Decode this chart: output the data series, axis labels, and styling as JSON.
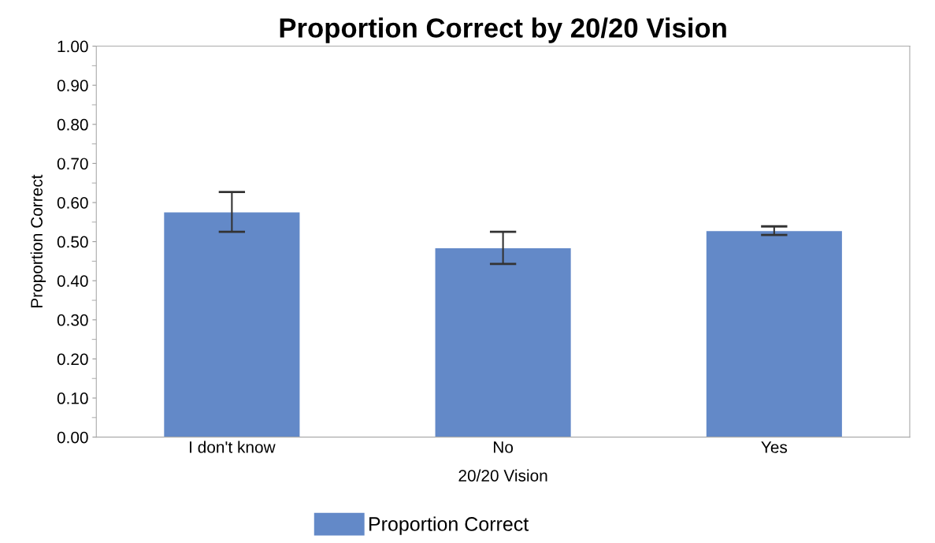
{
  "chart_data": {
    "type": "bar",
    "title": "Proportion Correct by 20/20 Vision",
    "xlabel": "20/20 Vision",
    "ylabel": "Proportion Correct",
    "categories": [
      "I don't know",
      "No",
      "Yes"
    ],
    "series": [
      {
        "name": "Proportion Correct",
        "color": "#6389c8",
        "values": [
          0.575,
          0.483,
          0.527
        ],
        "errors": [
          [
            0.525,
            0.627
          ],
          [
            0.443,
            0.525
          ],
          [
            0.517,
            0.539
          ]
        ]
      }
    ],
    "ylim": [
      0,
      1
    ],
    "yticks": [
      {
        "value": 0,
        "label": "0.00"
      },
      {
        "value": 0.1,
        "label": "0.10"
      },
      {
        "value": 0.2,
        "label": "0.20"
      },
      {
        "value": 0.3,
        "label": "0.30"
      },
      {
        "value": 0.4,
        "label": "0.40"
      },
      {
        "value": 0.5,
        "label": "0.50"
      },
      {
        "value": 0.6,
        "label": "0.60"
      },
      {
        "value": 0.7,
        "label": "0.70"
      },
      {
        "value": 0.8,
        "label": "0.80"
      },
      {
        "value": 0.9,
        "label": "0.90"
      },
      {
        "value": 1,
        "label": "1.00"
      }
    ],
    "legend": "bottom"
  }
}
